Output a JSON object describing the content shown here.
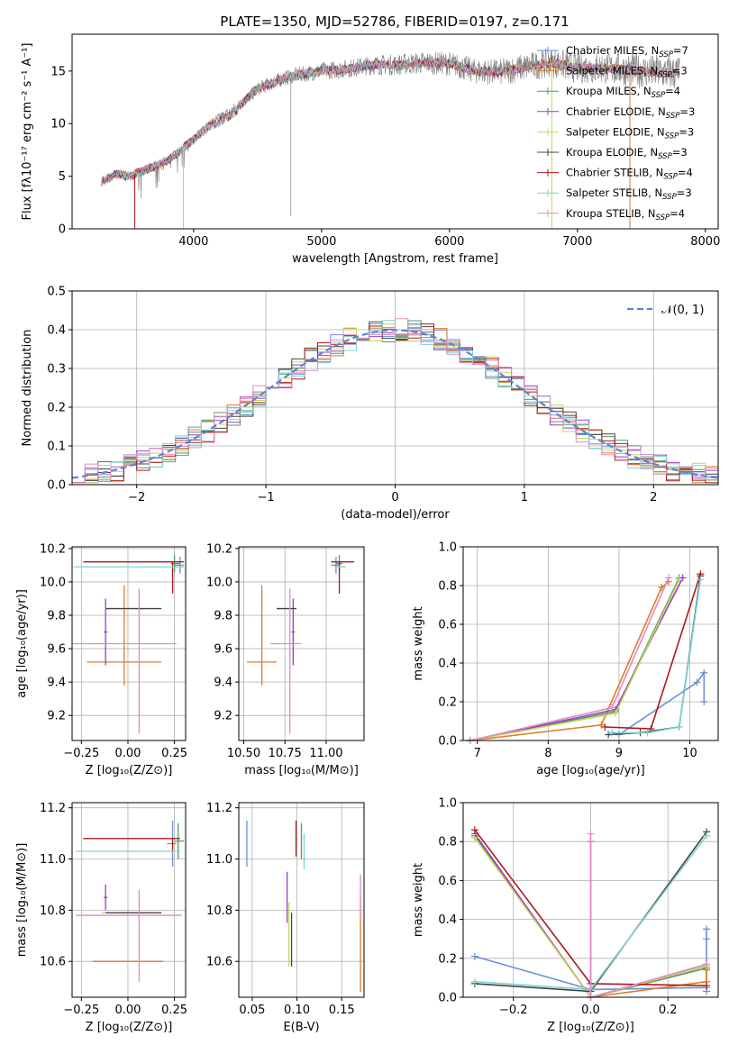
{
  "colors": [
    "#6a8fd8",
    "#e07a28",
    "#4c9a6a",
    "#9b3ec0",
    "#c9d657",
    "#444444",
    "#b01818",
    "#7fd3d3",
    "#e08ac8"
  ],
  "chart_data": [
    {
      "id": "spectrum",
      "type": "line",
      "title": "PLATE=1350, MJD=52786, FIBERID=0197, z=0.171",
      "xlabel": "wavelength [Angstrom, rest frame]",
      "ylabel": "Flux [fλ10⁻¹⁷ erg cm⁻² s⁻¹ A⁻¹]",
      "xlim": [
        3050,
        8100
      ],
      "ylim": [
        0,
        18.5
      ],
      "xticks": [
        4000,
        5000,
        6000,
        7000,
        8000
      ],
      "yticks": [
        0,
        5,
        10,
        15
      ],
      "legend_position": "right",
      "continuum": [
        [
          3280,
          4.5
        ],
        [
          3400,
          5.2
        ],
        [
          3500,
          5.0
        ],
        [
          3600,
          5.5
        ],
        [
          3700,
          6.0
        ],
        [
          3800,
          6.5
        ],
        [
          3900,
          7.5
        ],
        [
          4000,
          8.5
        ],
        [
          4100,
          9.6
        ],
        [
          4200,
          10.5
        ],
        [
          4300,
          11.2
        ],
        [
          4400,
          12.2
        ],
        [
          4500,
          13.3
        ],
        [
          4600,
          13.8
        ],
        [
          4700,
          14.3
        ],
        [
          4800,
          14.6
        ],
        [
          4900,
          14.8
        ],
        [
          5000,
          15.0
        ],
        [
          5200,
          15.2
        ],
        [
          5400,
          15.6
        ],
        [
          5600,
          15.6
        ],
        [
          5800,
          15.8
        ],
        [
          6000,
          15.7
        ],
        [
          6200,
          15.0
        ],
        [
          6400,
          14.9
        ],
        [
          6600,
          15.4
        ],
        [
          6800,
          15.8
        ],
        [
          7000,
          15.3
        ],
        [
          7200,
          15.3
        ],
        [
          7400,
          15.1
        ],
        [
          7600,
          14.9
        ],
        [
          7800,
          14.8
        ]
      ],
      "spikes": [
        [
          3540,
          0.3
        ],
        [
          3920,
          0.1
        ],
        [
          4760,
          1.2
        ],
        [
          6800,
          0.2
        ],
        [
          7410,
          0.1
        ]
      ],
      "series": [
        {
          "name": "Chabrier MILES, N",
          "sub": "SSP",
          "n": "=7"
        },
        {
          "name": "Salpeter MILES, N",
          "sub": "SSP",
          "n": "=3"
        },
        {
          "name": "Kroupa MILES, N",
          "sub": "SSP",
          "n": "=4"
        },
        {
          "name": "Chabrier ELODIE, N",
          "sub": "SSP",
          "n": "=3"
        },
        {
          "name": "Salpeter ELODIE, N",
          "sub": "SSP",
          "n": "=3"
        },
        {
          "name": "Kroupa ELODIE, N",
          "sub": "SSP",
          "n": "=3"
        },
        {
          "name": "Chabrier STELIB, N",
          "sub": "SSP",
          "n": "=4"
        },
        {
          "name": "Salpeter STELIB, N",
          "sub": "SSP",
          "n": "=3"
        },
        {
          "name": "Kroupa STELIB, N",
          "sub": "SSP",
          "n": "=4"
        }
      ]
    },
    {
      "id": "residuals",
      "type": "line",
      "xlabel": "(data-model)/error",
      "ylabel": "Normed distribution",
      "xlim": [
        -2.5,
        2.5
      ],
      "ylim": [
        0,
        0.5
      ],
      "xticks": [
        -2,
        -1,
        0,
        1,
        2
      ],
      "yticks": [
        0.0,
        0.1,
        0.2,
        0.3,
        0.4,
        0.5
      ],
      "legend": "𝒩(0, 1)",
      "legend_position": "top-right",
      "bin_width": 0.1
    },
    {
      "id": "age_vs_Z",
      "type": "scatter",
      "xlabel": "Z [log₁₀(Z/Z⊙)]",
      "ylabel": "age  [log₁₀(age/yr)]",
      "xlim": [
        -0.3,
        0.31
      ],
      "ylim": [
        9.05,
        10.21
      ],
      "xticks": [
        -0.25,
        0.0,
        0.25
      ],
      "xtick_labels": [
        "−0.25",
        "0.00",
        "0.25"
      ],
      "yticks": [
        9.2,
        9.4,
        9.6,
        9.8,
        10.0,
        10.2
      ],
      "points": [
        {
          "x": 0.28,
          "xerr": [
            0.03,
            0.02
          ],
          "y": 10.1,
          "yerr": [
            0.05,
            0.05
          ]
        },
        {
          "x": -0.02,
          "xerr": [
            0.2,
            0.2
          ],
          "y": 9.52,
          "yerr": [
            0.14,
            0.46
          ]
        },
        {
          "x": 0.25,
          "xerr": [
            0.02,
            0.03
          ],
          "y": 10.11,
          "yerr": [
            0.05,
            0.05
          ]
        },
        {
          "x": -0.12,
          "xerr": [
            0.01,
            0.01
          ],
          "y": 9.7,
          "yerr": [
            0.2,
            0.2
          ]
        },
        {
          "x": -0.01,
          "xerr": [
            0.11,
            0.11
          ],
          "y": 9.84,
          "yerr": [
            0.0,
            0.0
          ]
        },
        {
          "x": 0.03,
          "xerr": [
            0.15,
            0.15
          ],
          "y": 9.84,
          "yerr": [
            0.0,
            0.0
          ]
        },
        {
          "x": 0.24,
          "xerr": [
            0.48,
            0.06
          ],
          "y": 10.12,
          "yerr": [
            0.19,
            0.0
          ]
        },
        {
          "x": 0.24,
          "xerr": [
            0.53,
            0.06
          ],
          "y": 10.09,
          "yerr": [
            0.0,
            0.0
          ]
        },
        {
          "x": 0.06,
          "xerr": [
            0.36,
            0.2
          ],
          "y": 9.63,
          "yerr": [
            0.54,
            0.33
          ]
        }
      ]
    },
    {
      "id": "age_vs_mass",
      "type": "scatter",
      "xlabel": "mass [log₁₀(M/M⊙)]",
      "xlim": [
        10.47,
        11.23
      ],
      "ylim": [
        9.05,
        10.21
      ],
      "xticks": [
        10.5,
        10.75,
        11.0
      ],
      "xtick_labels": [
        "10.50",
        "10.75",
        "11.00"
      ],
      "yticks": [
        9.2,
        9.4,
        9.6,
        9.8,
        10.0,
        10.2
      ],
      "points": [
        {
          "x": 11.06,
          "xerr": [
            0.03,
            0.02
          ],
          "y": 10.1,
          "yerr": [
            0.05,
            0.05
          ]
        },
        {
          "x": 10.61,
          "xerr": [
            0.09,
            0.09
          ],
          "y": 9.52,
          "yerr": [
            0.14,
            0.46
          ]
        },
        {
          "x": 11.08,
          "xerr": [
            0.02,
            0.02
          ],
          "y": 10.11,
          "yerr": [
            0.05,
            0.05
          ]
        },
        {
          "x": 10.8,
          "xerr": [
            0.01,
            0.01
          ],
          "y": 9.7,
          "yerr": [
            0.2,
            0.2
          ]
        },
        {
          "x": 10.78,
          "xerr": [
            0.08,
            0.02
          ],
          "y": 9.84,
          "yerr": [
            0.0,
            0.0
          ]
        },
        {
          "x": 10.78,
          "xerr": [
            0.08,
            0.04
          ],
          "y": 9.84,
          "yerr": [
            0.0,
            0.0
          ]
        },
        {
          "x": 11.08,
          "xerr": [
            0.05,
            0.09
          ],
          "y": 10.12,
          "yerr": [
            0.19,
            0.0
          ]
        },
        {
          "x": 11.08,
          "xerr": [
            0.03,
            0.04
          ],
          "y": 10.09,
          "yerr": [
            0.0,
            0.0
          ]
        },
        {
          "x": 10.78,
          "xerr": [
            0.12,
            0.07
          ],
          "y": 9.63,
          "yerr": [
            0.54,
            0.33
          ]
        }
      ]
    },
    {
      "id": "weight_vs_age",
      "type": "line",
      "xlabel": "age  [log₁₀(age/yr)]",
      "ylabel": "mass weight",
      "xlim": [
        6.8,
        10.4
      ],
      "ylim": [
        0,
        1.0
      ],
      "xticks": [
        7,
        8,
        9,
        10
      ],
      "yticks": [
        0.0,
        0.2,
        0.4,
        0.6,
        0.8,
        1.0
      ],
      "series": [
        {
          "x": [
            8.9,
            9.0,
            10.1,
            10.2,
            10.2
          ],
          "y": [
            0.04,
            0.03,
            0.3,
            0.35,
            0.2
          ]
        },
        {
          "x": [
            6.9,
            8.75,
            9.6,
            9.7
          ],
          "y": [
            0.0,
            0.08,
            0.79,
            0.82
          ]
        },
        {
          "x": [
            6.9,
            8.95,
            9.85
          ],
          "y": [
            0.0,
            0.15,
            0.84
          ]
        },
        {
          "x": [
            6.9,
            8.95,
            9.9
          ],
          "y": [
            0.0,
            0.16,
            0.84
          ]
        },
        {
          "x": [
            6.9,
            8.95,
            9.85
          ],
          "y": [
            0.0,
            0.14,
            0.83
          ]
        },
        {
          "x": [
            8.85,
            9.3,
            9.85,
            10.15
          ],
          "y": [
            0.03,
            0.04,
            0.07,
            0.85
          ]
        },
        {
          "x": [
            8.8,
            9.45,
            10.15
          ],
          "y": [
            0.07,
            0.06,
            0.86
          ]
        },
        {
          "x": [
            8.9,
            9.4,
            9.85,
            10.15
          ],
          "y": [
            0.04,
            0.04,
            0.07,
            0.83
          ]
        },
        {
          "x": [
            6.9,
            8.9,
            9.7
          ],
          "y": [
            0.0,
            0.17,
            0.84
          ]
        }
      ]
    },
    {
      "id": "mass_vs_Z",
      "type": "scatter",
      "xlabel": "Z [log₁₀(Z/Z⊙)]",
      "ylabel": "mass [log₁₀(M/M⊙)]",
      "xlim": [
        -0.3,
        0.31
      ],
      "ylim": [
        10.46,
        11.22
      ],
      "xticks": [
        -0.25,
        0.0,
        0.25
      ],
      "xtick_labels": [
        "−0.25",
        "0.00",
        "0.25"
      ],
      "yticks": [
        10.6,
        10.8,
        11.0,
        11.2
      ],
      "points": [
        {
          "x": 0.24,
          "xerr": [
            0.03,
            0.02
          ],
          "y": 11.06,
          "yerr": [
            0.09,
            0.09
          ]
        },
        {
          "x": 0.0,
          "xerr": [
            0.19,
            0.19
          ],
          "y": 10.6,
          "yerr": [
            0.0,
            0.0
          ]
        },
        {
          "x": 0.27,
          "xerr": [
            0.02,
            0.03
          ],
          "y": 11.07,
          "yerr": [
            0.07,
            0.07
          ]
        },
        {
          "x": -0.12,
          "xerr": [
            0.01,
            0.01
          ],
          "y": 10.85,
          "yerr": [
            0.05,
            0.05
          ]
        },
        {
          "x": -0.02,
          "xerr": [
            0.12,
            0.12
          ],
          "y": 10.79,
          "yerr": [
            0.0,
            0.0
          ]
        },
        {
          "x": 0.03,
          "xerr": [
            0.15,
            0.15
          ],
          "y": 10.79,
          "yerr": [
            0.0,
            0.0
          ]
        },
        {
          "x": 0.24,
          "xerr": [
            0.48,
            0.04
          ],
          "y": 11.08,
          "yerr": [
            0.05,
            0.0
          ]
        },
        {
          "x": 0.24,
          "xerr": [
            0.52,
            0.04
          ],
          "y": 11.03,
          "yerr": [
            0.0,
            0.0
          ]
        },
        {
          "x": 0.06,
          "xerr": [
            0.34,
            0.23
          ],
          "y": 10.78,
          "yerr": [
            0.26,
            0.1
          ]
        }
      ]
    },
    {
      "id": "mass_vs_EBV",
      "type": "scatter",
      "xlabel": "E(B-V)",
      "xlim": [
        0.035,
        0.175
      ],
      "ylim": [
        10.46,
        11.22
      ],
      "xticks": [
        0.05,
        0.1,
        0.15
      ],
      "xtick_labels": [
        "0.05",
        "0.10",
        "0.15"
      ],
      "yticks": [
        10.6,
        10.8,
        11.0,
        11.2
      ],
      "points": [
        {
          "x": 0.044,
          "xerr": [
            0,
            0
          ],
          "y": 11.06,
          "yerr": [
            0.09,
            0.09
          ]
        },
        {
          "x": 0.171,
          "xerr": [
            0,
            0
          ],
          "y": 10.72,
          "yerr": [
            0.24,
            0.14
          ]
        },
        {
          "x": 0.105,
          "xerr": [
            0,
            0
          ],
          "y": 11.07,
          "yerr": [
            0.07,
            0.07
          ]
        },
        {
          "x": 0.089,
          "xerr": [
            0,
            0
          ],
          "y": 10.85,
          "yerr": [
            0.1,
            0.1
          ]
        },
        {
          "x": 0.091,
          "xerr": [
            0,
            0
          ],
          "y": 10.73,
          "yerr": [
            0.15,
            0.1
          ]
        },
        {
          "x": 0.094,
          "xerr": [
            0,
            0
          ],
          "y": 10.69,
          "yerr": [
            0.11,
            0.1
          ]
        },
        {
          "x": 0.099,
          "xerr": [
            0,
            0
          ],
          "y": 11.08,
          "yerr": [
            0.07,
            0.07
          ]
        },
        {
          "x": 0.108,
          "xerr": [
            0,
            0
          ],
          "y": 11.03,
          "yerr": [
            0.07,
            0.07
          ]
        },
        {
          "x": 0.171,
          "xerr": [
            0,
            0
          ],
          "y": 10.86,
          "yerr": [
            0.08,
            0.08
          ]
        }
      ]
    },
    {
      "id": "weight_vs_Z",
      "type": "line",
      "xlabel": "Z [log₁₀(Z/Z⊙)]",
      "ylabel": "mass weight",
      "xlim": [
        -0.33,
        0.33
      ],
      "ylim": [
        0,
        1.0
      ],
      "xticks": [
        -0.2,
        0.0,
        0.2
      ],
      "xtick_labels": [
        "−0.2",
        "0.0",
        "0.2"
      ],
      "yticks": [
        0.0,
        0.2,
        0.4,
        0.6,
        0.8,
        1.0
      ],
      "series": [
        {
          "x": [
            -0.3,
            0.0,
            0.3,
            0.3,
            0.3,
            0.3
          ],
          "y": [
            0.21,
            0.04,
            0.05,
            0.35,
            0.3,
            0.03
          ]
        },
        {
          "x": [
            0.0,
            0.0,
            0.3,
            0.3
          ],
          "y": [
            0.8,
            0.0,
            0.08,
            0.14
          ]
        },
        {
          "x": [
            -0.3,
            0.0,
            0.3
          ],
          "y": [
            0.83,
            0.0,
            0.15
          ]
        },
        {
          "x": [
            -0.3,
            0.0,
            0.3
          ],
          "y": [
            0.84,
            0.0,
            0.16
          ]
        },
        {
          "x": [
            -0.3,
            0.0,
            0.3
          ],
          "y": [
            0.82,
            0.0,
            0.16
          ]
        },
        {
          "x": [
            -0.3,
            0.0,
            0.3
          ],
          "y": [
            0.07,
            0.03,
            0.85
          ]
        },
        {
          "x": [
            -0.3,
            0.0,
            0.3
          ],
          "y": [
            0.86,
            0.07,
            0.06
          ]
        },
        {
          "x": [
            -0.3,
            0.0,
            0.3
          ],
          "y": [
            0.08,
            0.04,
            0.83
          ]
        },
        {
          "x": [
            0.0,
            0.0,
            0.3
          ],
          "y": [
            0.84,
            0.0,
            0.17
          ]
        }
      ]
    }
  ]
}
